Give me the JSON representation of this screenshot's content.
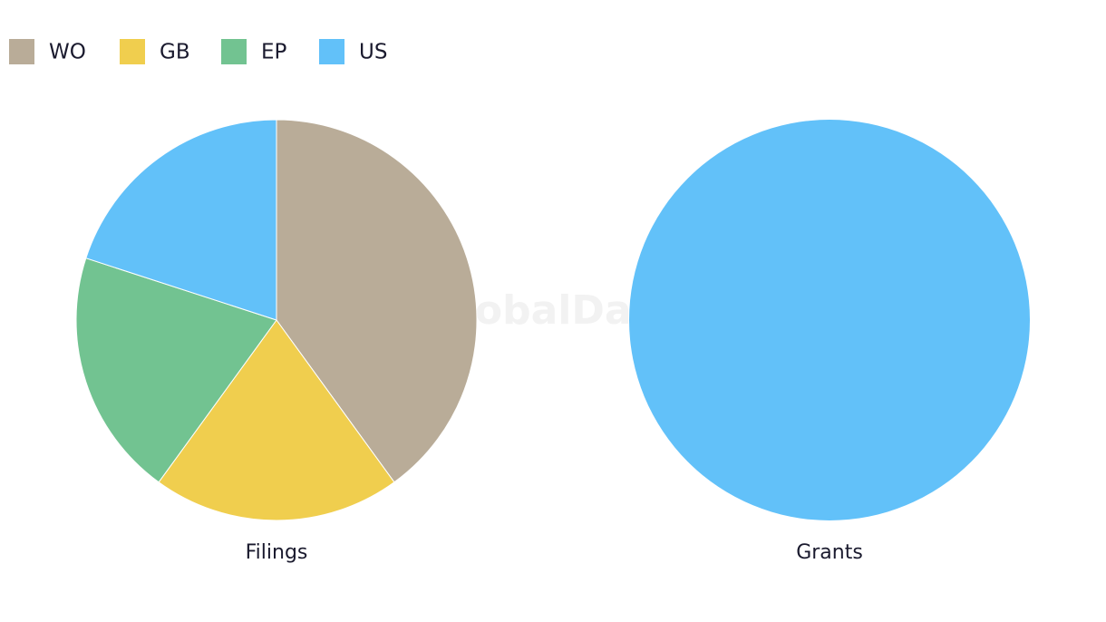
{
  "chart_data": [
    {
      "type": "pie",
      "title": "Filings",
      "categories": [
        "WO",
        "GB",
        "EP",
        "US"
      ],
      "values": [
        40,
        20,
        20,
        20
      ],
      "colors": [
        "#b9ac98",
        "#f0ce4e",
        "#72c391",
        "#62c1f9"
      ],
      "legend": "top-left"
    },
    {
      "type": "pie",
      "title": "Grants",
      "categories": [
        "US"
      ],
      "values": [
        100
      ],
      "colors": [
        "#62c1f9"
      ]
    }
  ],
  "watermark": "GlobalData"
}
